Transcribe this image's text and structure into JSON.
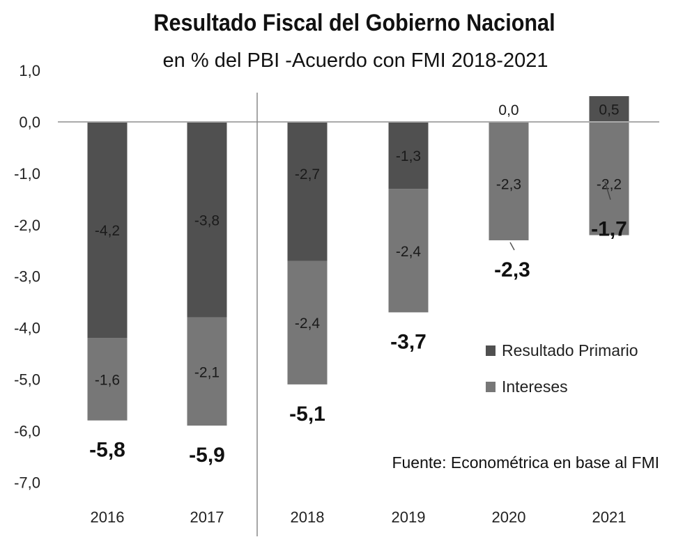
{
  "chart_data": {
    "type": "bar",
    "stacked": true,
    "title": "Resultado Fiscal del Gobierno Nacional",
    "subtitle": "en % del PBI -Acuerdo con FMI 2018-2021",
    "categories": [
      "2016",
      "2017",
      "2018",
      "2019",
      "2020",
      "2021"
    ],
    "series": [
      {
        "name": "Resultado Primario",
        "values": [
          -4.2,
          -3.8,
          -2.7,
          -1.3,
          0.0,
          0.5
        ],
        "labels": [
          "-4,2",
          "-3,8",
          "-2,7",
          "-1,3",
          "0,0",
          "0,5"
        ],
        "color": "#505050"
      },
      {
        "name": "Intereses",
        "values": [
          -1.6,
          -2.1,
          -2.4,
          -2.4,
          -2.3,
          -2.2
        ],
        "labels": [
          "-1,6",
          "-2,1",
          "-2,4",
          "-2,4",
          "-2,3",
          "-2,2"
        ],
        "color": "#777777"
      }
    ],
    "totals": [
      -5.8,
      -5.9,
      -5.1,
      -3.7,
      -2.3,
      -1.7
    ],
    "total_labels": [
      "-5,8",
      "-5,9",
      "-5,1",
      "-3,7",
      "-2,3",
      "-1,7"
    ],
    "ylim": [
      -7.0,
      1.0
    ],
    "yticks": [
      1.0,
      0.0,
      -1.0,
      -2.0,
      -3.0,
      -4.0,
      -5.0,
      -6.0,
      -7.0
    ],
    "ytick_labels": [
      "1,0",
      "0,0",
      "-1,0",
      "-2,0",
      "-3,0",
      "-4,0",
      "-5,0",
      "-6,0",
      "-7,0"
    ],
    "grid": false,
    "legend_placement": "bottom-right",
    "separator_between": [
      "2017",
      "2018"
    ],
    "source": "Fuente: Econométrica en base al FMI"
  }
}
